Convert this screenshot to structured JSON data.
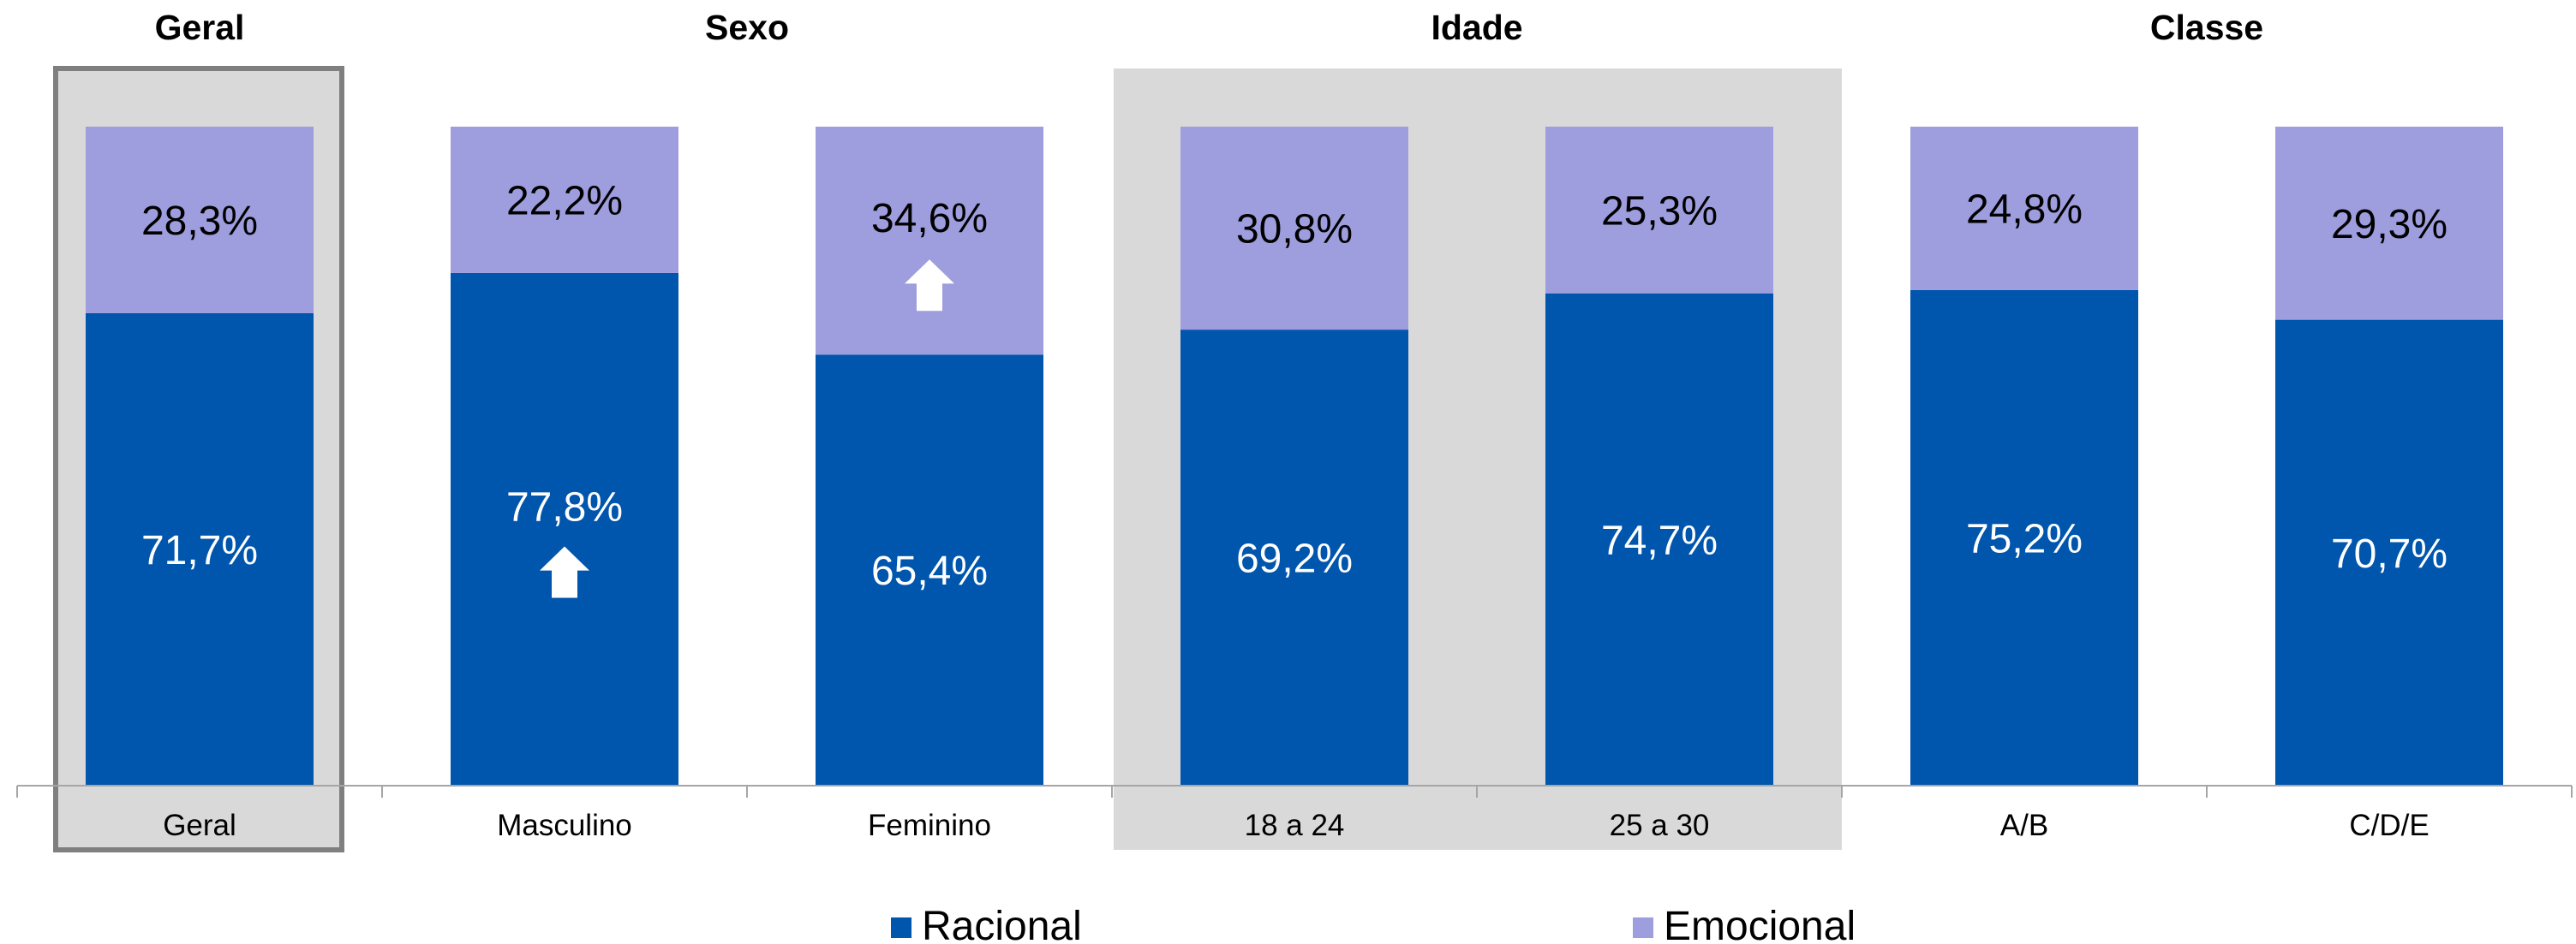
{
  "colors": {
    "racional": "#0055AD",
    "emocional": "#9E9DDE",
    "highlight_bg": "#D9D9D9",
    "highlight_border": "#7F7F7F",
    "axis": "#A6A6A6",
    "arrow": "#FFFFFF"
  },
  "chart_data": {
    "type": "bar",
    "stacked": true,
    "percent_stacked": true,
    "groups": [
      {
        "title": "Geral",
        "categories": [
          "Geral"
        ]
      },
      {
        "title": "Sexo",
        "categories": [
          "Masculino",
          "Feminino"
        ]
      },
      {
        "title": "Idade",
        "categories": [
          "18 a 24",
          "25 a 30"
        ]
      },
      {
        "title": "Classe",
        "categories": [
          "A/B",
          "C/D/E"
        ]
      }
    ],
    "categories": [
      "Geral",
      "Masculino",
      "Feminino",
      "18 a 24",
      "25 a 30",
      "A/B",
      "C/D/E"
    ],
    "series": [
      {
        "name": "Racional",
        "values": [
          71.7,
          77.8,
          65.4,
          69.2,
          74.7,
          75.2,
          70.7
        ],
        "labels": [
          "71,7%",
          "77,8%",
          "65,4%",
          "69,2%",
          "74,7%",
          "75,2%",
          "70,7%"
        ]
      },
      {
        "name": "Emocional",
        "values": [
          28.3,
          22.2,
          34.6,
          30.8,
          25.3,
          24.8,
          29.3
        ],
        "labels": [
          "28,3%",
          "22,2%",
          "34,6%",
          "30,8%",
          "25,3%",
          "24,8%",
          "29,3%"
        ]
      }
    ],
    "highlights": [
      {
        "series": "Racional",
        "category": "Masculino",
        "marker": "up-arrow"
      },
      {
        "series": "Emocional",
        "category": "Feminino",
        "marker": "up-arrow"
      }
    ],
    "ylim": [
      0,
      100
    ],
    "legend": "bottom",
    "grid": false
  }
}
